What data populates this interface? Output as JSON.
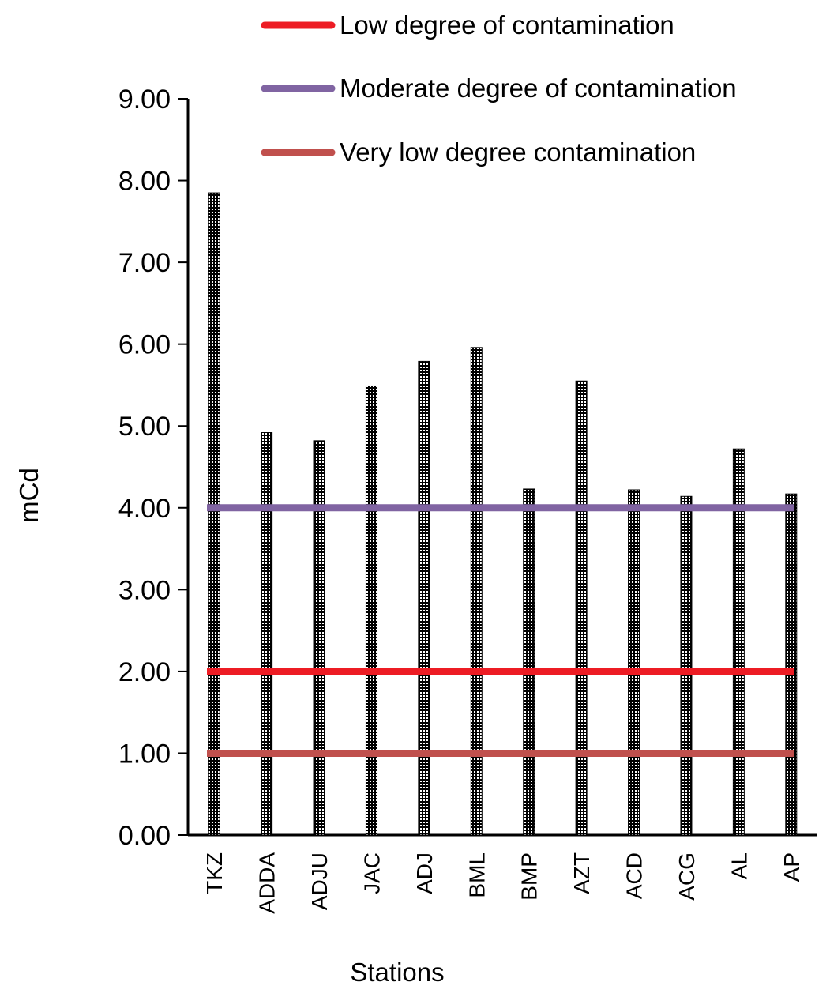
{
  "chart_data": {
    "type": "bar",
    "title": "",
    "xlabel": "Stations",
    "ylabel": "mCd",
    "ylim": [
      0,
      9
    ],
    "ytick_labels": [
      "0.00",
      "1.00",
      "2.00",
      "3.00",
      "4.00",
      "5.00",
      "6.00",
      "7.00",
      "8.00",
      "9.00"
    ],
    "categories": [
      "TKZ",
      "ADDA",
      "ADJU",
      "JAC",
      "ADJ",
      "BML",
      "BMP",
      "AZT",
      "ACD",
      "ACG",
      "AL",
      "AP"
    ],
    "values": [
      7.85,
      4.92,
      4.82,
      5.49,
      5.79,
      5.96,
      4.23,
      5.55,
      4.22,
      4.14,
      4.72,
      4.17
    ],
    "bar_pattern": "black-white-dotted",
    "reference_lines": [
      {
        "name": "Low degree of contamination",
        "value": 2,
        "color": "#ed1c24"
      },
      {
        "name": "Moderate degree of contamination",
        "value": 4,
        "color": "#8064a2"
      },
      {
        "name": "Very low degree contamination",
        "value": 1,
        "color": "#c0504d"
      }
    ],
    "legend_position": "top"
  }
}
